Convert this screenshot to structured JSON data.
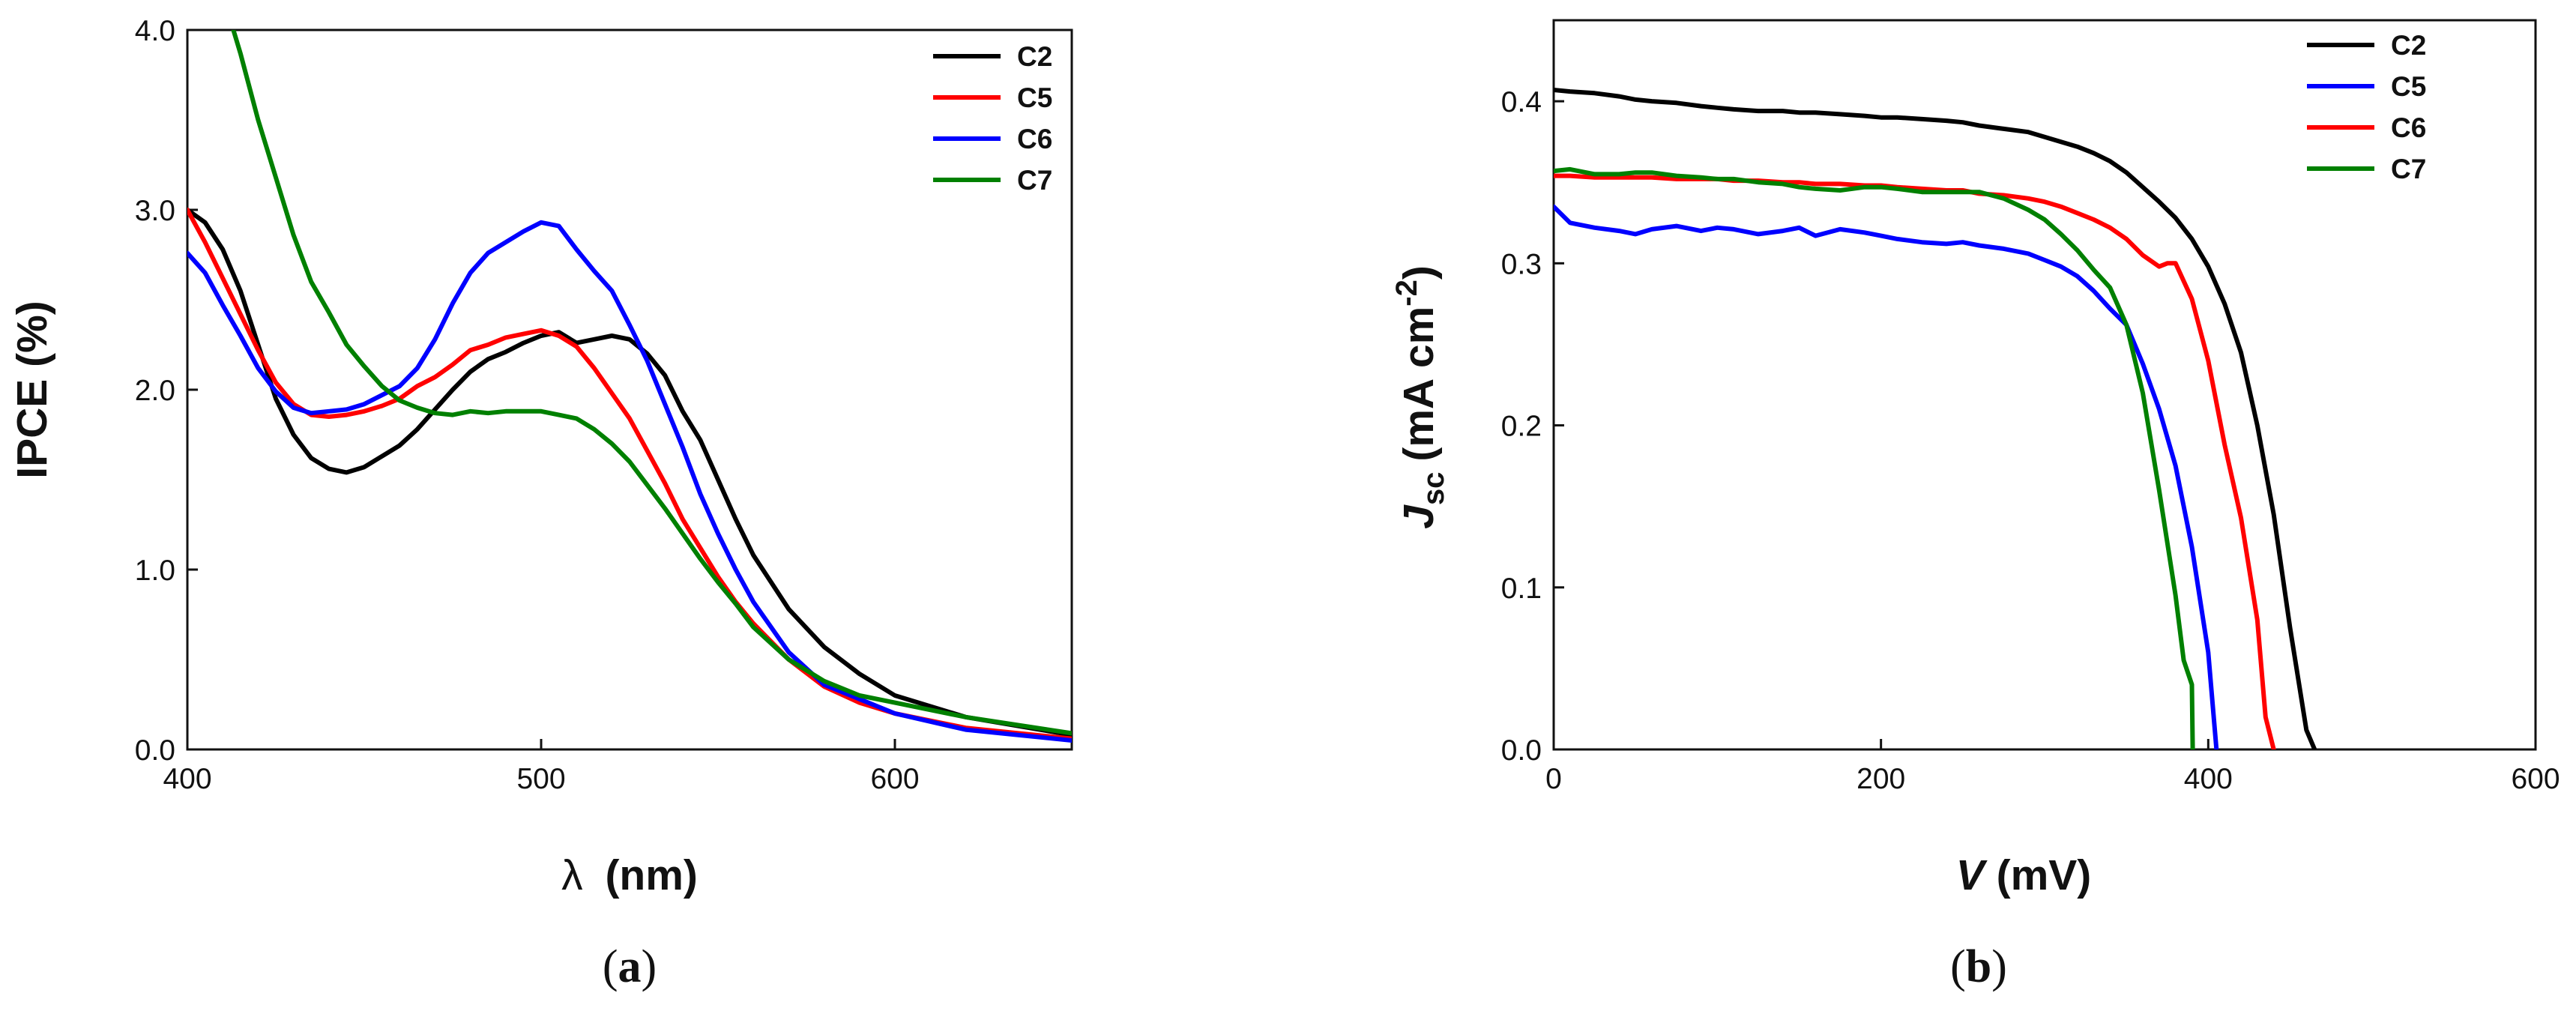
{
  "chart_data": [
    {
      "type": "line",
      "panel_label": "a",
      "xlabel_symbol": "λ",
      "xlabel_unit": "(nm)",
      "ylabel": "IPCE (%)",
      "xlim": [
        400,
        650
      ],
      "ylim": [
        0,
        4
      ],
      "xticks": [
        400,
        500,
        600
      ],
      "xtick_labels": [
        "400",
        "500",
        "600"
      ],
      "yticks": [
        0,
        1,
        2,
        3,
        4
      ],
      "ytick_labels": [
        "0.0",
        "1.0",
        "2.0",
        "3.0",
        "4.0"
      ],
      "legend_position": "top-right",
      "series": [
        {
          "name": "C2",
          "color": "#000000",
          "x": [
            400,
            405,
            410,
            415,
            420,
            425,
            430,
            435,
            440,
            445,
            450,
            455,
            460,
            465,
            470,
            475,
            480,
            485,
            490,
            495,
            500,
            505,
            510,
            515,
            520,
            525,
            530,
            535,
            540,
            545,
            550,
            555,
            560,
            570,
            580,
            590,
            600,
            620,
            650
          ],
          "y": [
            3.0,
            2.93,
            2.78,
            2.55,
            2.25,
            1.95,
            1.75,
            1.62,
            1.56,
            1.54,
            1.57,
            1.63,
            1.69,
            1.78,
            1.89,
            2.0,
            2.1,
            2.17,
            2.21,
            2.26,
            2.3,
            2.32,
            2.26,
            2.28,
            2.3,
            2.28,
            2.2,
            2.08,
            1.88,
            1.72,
            1.5,
            1.28,
            1.08,
            0.78,
            0.57,
            0.42,
            0.3,
            0.18,
            0.08
          ]
        },
        {
          "name": "C5",
          "color": "#ff0000",
          "x": [
            400,
            405,
            410,
            415,
            420,
            425,
            430,
            435,
            440,
            445,
            450,
            455,
            460,
            465,
            470,
            475,
            480,
            485,
            490,
            495,
            500,
            505,
            510,
            515,
            520,
            525,
            530,
            535,
            540,
            545,
            550,
            555,
            560,
            570,
            580,
            590,
            600,
            620,
            650
          ],
          "y": [
            3.0,
            2.82,
            2.62,
            2.42,
            2.22,
            2.04,
            1.92,
            1.86,
            1.85,
            1.86,
            1.88,
            1.91,
            1.95,
            2.02,
            2.07,
            2.14,
            2.22,
            2.25,
            2.29,
            2.31,
            2.33,
            2.3,
            2.24,
            2.12,
            1.98,
            1.84,
            1.66,
            1.48,
            1.28,
            1.12,
            0.96,
            0.82,
            0.7,
            0.5,
            0.35,
            0.26,
            0.2,
            0.12,
            0.06
          ]
        },
        {
          "name": "C6",
          "color": "#0000ff",
          "x": [
            400,
            405,
            410,
            415,
            420,
            425,
            430,
            435,
            440,
            445,
            450,
            455,
            460,
            465,
            470,
            475,
            480,
            485,
            490,
            495,
            500,
            505,
            510,
            515,
            520,
            525,
            530,
            535,
            540,
            545,
            550,
            555,
            560,
            570,
            580,
            590,
            600,
            620,
            650
          ],
          "y": [
            2.76,
            2.65,
            2.47,
            2.3,
            2.12,
            1.99,
            1.9,
            1.87,
            1.88,
            1.89,
            1.92,
            1.97,
            2.02,
            2.12,
            2.28,
            2.48,
            2.65,
            2.76,
            2.82,
            2.88,
            2.93,
            2.91,
            2.78,
            2.66,
            2.55,
            2.36,
            2.16,
            1.92,
            1.68,
            1.42,
            1.2,
            1.0,
            0.82,
            0.54,
            0.36,
            0.28,
            0.2,
            0.11,
            0.05
          ]
        },
        {
          "name": "C7",
          "color": "#008000",
          "x": [
            413,
            415,
            420,
            425,
            430,
            435,
            440,
            445,
            450,
            455,
            460,
            465,
            470,
            475,
            480,
            485,
            490,
            495,
            500,
            505,
            510,
            515,
            520,
            525,
            530,
            535,
            540,
            545,
            550,
            555,
            560,
            570,
            580,
            590,
            600,
            620,
            650
          ],
          "y": [
            4.0,
            3.87,
            3.5,
            3.18,
            2.86,
            2.6,
            2.43,
            2.25,
            2.13,
            2.02,
            1.94,
            1.9,
            1.87,
            1.86,
            1.88,
            1.87,
            1.88,
            1.88,
            1.88,
            1.86,
            1.84,
            1.78,
            1.7,
            1.6,
            1.47,
            1.34,
            1.2,
            1.06,
            0.93,
            0.81,
            0.68,
            0.5,
            0.38,
            0.3,
            0.26,
            0.18,
            0.09
          ]
        }
      ]
    },
    {
      "type": "line",
      "panel_label": "b",
      "xlabel_symbol": "V",
      "xlabel_unit": "(mV)",
      "ylabel_symbol": "J",
      "ylabel_subscript": "sc",
      "ylabel_unit": "(mA cm",
      "ylabel_exponent": "-2",
      "ylabel_close": ")",
      "xlim": [
        0,
        600
      ],
      "ylim": [
        0,
        0.45
      ],
      "xticks": [
        0,
        200,
        400,
        600
      ],
      "xtick_labels": [
        "0",
        "200",
        "400",
        "600"
      ],
      "yticks": [
        0,
        0.1,
        0.2,
        0.3,
        0.4
      ],
      "ytick_labels": [
        "0.0",
        "0.1",
        "0.2",
        "0.3",
        "0.4"
      ],
      "legend_position": "top-right",
      "series": [
        {
          "name": "C2",
          "color": "#000000",
          "x": [
            0,
            10,
            25,
            40,
            50,
            60,
            75,
            90,
            100,
            110,
            125,
            140,
            150,
            160,
            175,
            190,
            200,
            210,
            225,
            240,
            250,
            260,
            275,
            290,
            300,
            310,
            320,
            330,
            340,
            350,
            360,
            370,
            380,
            390,
            400,
            410,
            420,
            430,
            440,
            450,
            460,
            465
          ],
          "y": [
            0.407,
            0.406,
            0.405,
            0.403,
            0.401,
            0.4,
            0.399,
            0.397,
            0.396,
            0.395,
            0.394,
            0.394,
            0.393,
            0.393,
            0.392,
            0.391,
            0.39,
            0.39,
            0.389,
            0.388,
            0.387,
            0.385,
            0.383,
            0.381,
            0.378,
            0.375,
            0.372,
            0.368,
            0.363,
            0.356,
            0.347,
            0.338,
            0.328,
            0.315,
            0.298,
            0.275,
            0.245,
            0.2,
            0.145,
            0.075,
            0.012,
            0.0
          ]
        },
        {
          "name": "C5",
          "color": "#0000ff",
          "x": [
            0,
            10,
            25,
            40,
            50,
            60,
            75,
            90,
            100,
            110,
            125,
            140,
            150,
            160,
            175,
            190,
            200,
            210,
            225,
            240,
            250,
            260,
            275,
            290,
            300,
            310,
            320,
            330,
            340,
            350,
            360,
            370,
            380,
            390,
            400,
            405
          ],
          "y": [
            0.335,
            0.325,
            0.322,
            0.32,
            0.318,
            0.321,
            0.323,
            0.32,
            0.322,
            0.321,
            0.318,
            0.32,
            0.322,
            0.317,
            0.321,
            0.319,
            0.317,
            0.315,
            0.313,
            0.312,
            0.313,
            0.311,
            0.309,
            0.306,
            0.302,
            0.298,
            0.292,
            0.283,
            0.272,
            0.262,
            0.238,
            0.21,
            0.175,
            0.125,
            0.06,
            0.0
          ]
        },
        {
          "name": "C6",
          "color": "#ff0000",
          "x": [
            0,
            10,
            25,
            40,
            50,
            60,
            75,
            90,
            100,
            110,
            125,
            140,
            150,
            160,
            175,
            190,
            200,
            210,
            225,
            240,
            250,
            260,
            275,
            290,
            300,
            310,
            320,
            330,
            340,
            350,
            360,
            370,
            375,
            380,
            390,
            400,
            410,
            420,
            430,
            435,
            440
          ],
          "y": [
            0.354,
            0.354,
            0.353,
            0.353,
            0.353,
            0.353,
            0.352,
            0.352,
            0.352,
            0.351,
            0.351,
            0.35,
            0.35,
            0.349,
            0.349,
            0.348,
            0.348,
            0.347,
            0.346,
            0.345,
            0.345,
            0.343,
            0.342,
            0.34,
            0.338,
            0.335,
            0.331,
            0.327,
            0.322,
            0.315,
            0.305,
            0.298,
            0.3,
            0.3,
            0.278,
            0.24,
            0.188,
            0.143,
            0.08,
            0.02,
            0.0
          ]
        },
        {
          "name": "C7",
          "color": "#008000",
          "x": [
            0,
            10,
            25,
            40,
            50,
            60,
            75,
            90,
            100,
            110,
            125,
            140,
            150,
            160,
            175,
            190,
            200,
            210,
            225,
            240,
            250,
            260,
            275,
            290,
            300,
            310,
            320,
            330,
            340,
            350,
            360,
            370,
            380,
            385,
            390,
            390.5
          ],
          "y": [
            0.357,
            0.358,
            0.355,
            0.355,
            0.356,
            0.356,
            0.354,
            0.353,
            0.352,
            0.352,
            0.35,
            0.349,
            0.347,
            0.346,
            0.345,
            0.347,
            0.347,
            0.346,
            0.344,
            0.344,
            0.344,
            0.344,
            0.34,
            0.333,
            0.327,
            0.318,
            0.308,
            0.296,
            0.285,
            0.262,
            0.22,
            0.16,
            0.095,
            0.055,
            0.04,
            0.0
          ]
        }
      ]
    }
  ]
}
